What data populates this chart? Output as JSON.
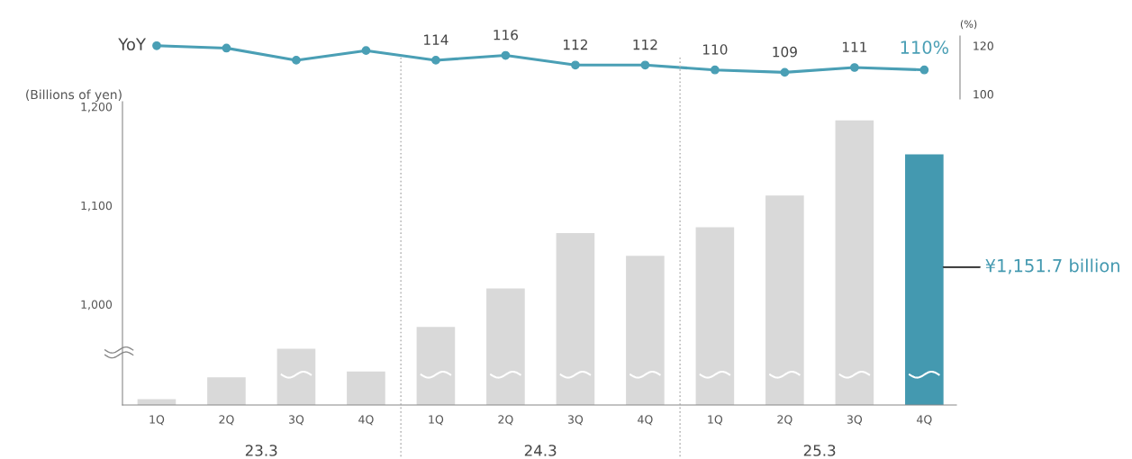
{
  "chart_data": [
    {
      "type": "line",
      "categories": [
        null,
        null,
        null,
        null,
        null,
        null,
        null,
        null,
        null,
        null,
        null,
        null
      ],
      "series": [
        {
          "name": "YoY",
          "color": "#4a9fb5",
          "values": [
            120,
            119,
            114,
            118,
            114,
            116,
            112,
            112,
            110,
            109,
            111,
            110
          ],
          "value_labels": [
            null,
            null,
            null,
            null,
            "114",
            "116",
            "112",
            "112",
            "110",
            "109",
            "111",
            "110%"
          ]
        }
      ],
      "ylabel": "(%)",
      "ylim": [
        98,
        124
      ],
      "yticks": [
        100,
        120
      ],
      "marker": "circle",
      "line_style": "solid",
      "legend": "left"
    },
    {
      "type": "bar",
      "ylabel": "(Billions of yen)",
      "categories": [
        "1Q",
        "2Q",
        "3Q",
        "4Q",
        "1Q",
        "2Q",
        "3Q",
        "4Q",
        "1Q",
        "2Q",
        "3Q",
        "4Q"
      ],
      "values": [
        904,
        926,
        955,
        932,
        977,
        1016,
        1072,
        1049,
        1078,
        1110,
        1186,
        1151.7
      ],
      "colors": [
        "#d9d9d9",
        "#d9d9d9",
        "#d9d9d9",
        "#d9d9d9",
        "#d9d9d9",
        "#d9d9d9",
        "#d9d9d9",
        "#d9d9d9",
        "#d9d9d9",
        "#d9d9d9",
        "#d9d9d9",
        "#4499b0"
      ],
      "ylim": [
        898,
        1205
      ],
      "yticks": [
        {
          "value": 1000,
          "label": "1,000"
        },
        {
          "value": 1100,
          "label": "1,100"
        },
        {
          "value": 1200,
          "label": "1,200"
        }
      ],
      "value_labels": [
        null,
        null,
        null,
        null,
        null,
        null,
        null,
        null,
        null,
        null,
        null,
        "¥1,151.7 billion"
      ],
      "annotations": [
        "23.3",
        "24.3",
        "25.3"
      ]
    }
  ]
}
